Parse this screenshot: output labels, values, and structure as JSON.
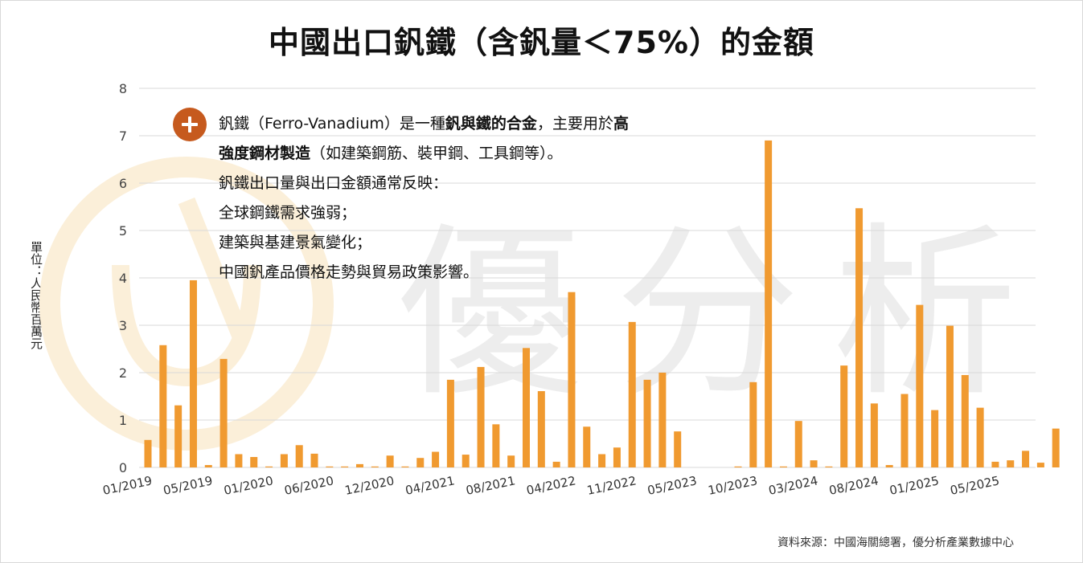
{
  "title": "中國出口釩鐵（含釩量＜75%）的金額",
  "y_axis_label": "單位：人民幣百萬元",
  "source": "資料來源：中國海關總署，優分析產業數據中心",
  "watermark": "優分析",
  "annotation": {
    "icon": "plus-circle-icon",
    "lines": [
      [
        {
          "text": "釩鐵（Ferro-Vanadium）是一種",
          "bold": false
        },
        {
          "text": "釩與鐵的合金",
          "bold": true
        },
        {
          "text": "，主要用於",
          "bold": false
        },
        {
          "text": "高",
          "bold": true
        }
      ],
      [
        {
          "text": "強度鋼材製造",
          "bold": true
        },
        {
          "text": "（如建築鋼筋、裝甲鋼、工具鋼等）。",
          "bold": false
        }
      ],
      [
        {
          "text": "釩鐵出口量與出口金額通常反映：",
          "bold": false
        }
      ],
      [
        {
          "text": "全球鋼鐵需求強弱；",
          "bold": false
        }
      ],
      [
        {
          "text": "建築與基建景氣變化；",
          "bold": false
        }
      ],
      [
        {
          "text": "中國釩產品價格走勢與貿易政策影響。",
          "bold": false
        }
      ]
    ]
  },
  "colors": {
    "bar": "#F09A30",
    "grid": "#D9D9D9",
    "badge": "#C65A1E",
    "watermark": "#EDEDED",
    "watermark_logo": "#FBEFD9"
  },
  "chart_data": {
    "type": "bar",
    "x_tick_labels": [
      "01/2019",
      "05/2019",
      "01/2020",
      "06/2020",
      "12/2020",
      "04/2021",
      "08/2021",
      "04/2022",
      "11/2022",
      "05/2023",
      "10/2023",
      "03/2024",
      "08/2024",
      "01/2025",
      "05/2025"
    ],
    "ylim": [
      0,
      8
    ],
    "yticks": [
      0,
      1,
      2,
      3,
      4,
      5,
      6,
      7,
      8
    ],
    "grid": true,
    "values": [
      0.58,
      2.58,
      1.31,
      3.95,
      0.05,
      2.29,
      0.28,
      0.22,
      0.02,
      0.28,
      0.47,
      0.29,
      0.02,
      0.02,
      0.07,
      0.02,
      0.25,
      0.02,
      0.2,
      0.33,
      1.85,
      0.27,
      2.12,
      0.91,
      0.25,
      2.52,
      1.61,
      0.12,
      3.7,
      0.86,
      0.28,
      0.42,
      3.07,
      1.85,
      2.0,
      0.76,
      0,
      0,
      0,
      0.02,
      1.8,
      6.9,
      0.02,
      0.98,
      0.15,
      0.02,
      2.15,
      5.47,
      1.35,
      0.05,
      1.55,
      3.43,
      1.21,
      2.99,
      1.95,
      1.26,
      0.12,
      0.15,
      0.35,
      0.1,
      0.82
    ]
  }
}
